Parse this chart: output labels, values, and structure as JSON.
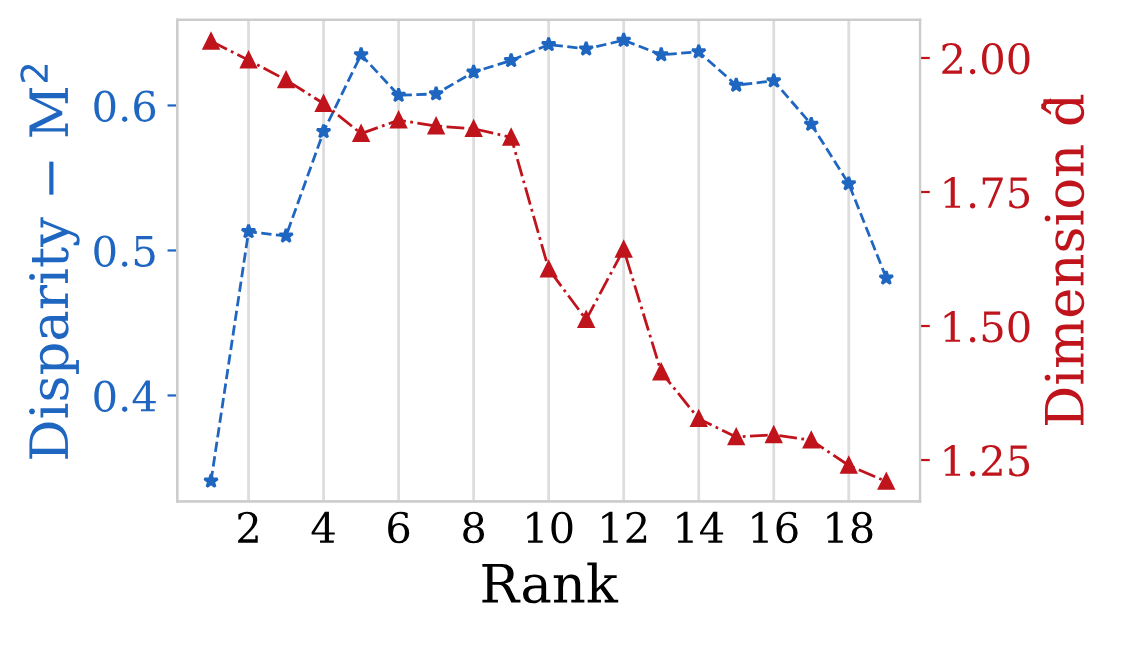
{
  "chart_data": {
    "type": "line",
    "xlabel": "Rank",
    "ylabel": "Disparity − M$^{2}$",
    "y2label": "Dimension d̂",
    "x": [
      1,
      2,
      3,
      4,
      5,
      6,
      7,
      8,
      9,
      10,
      11,
      12,
      13,
      14,
      15,
      16,
      17,
      18,
      19
    ],
    "xlim": [
      0.1,
      19.9
    ],
    "xticks": [
      2,
      4,
      6,
      8,
      10,
      12,
      14,
      16,
      18
    ],
    "ylim": [
      0.327,
      0.659
    ],
    "yticks": [
      0.4,
      0.5,
      0.6
    ],
    "y2lim": [
      1.173,
      2.071
    ],
    "y2ticks": [
      {
        "value": 1.25,
        "label": "1.25"
      },
      {
        "value": 1.5,
        "label": "1.50"
      },
      {
        "value": 1.75,
        "label": "1.75"
      },
      {
        "value": 2.0,
        "label": "2.00"
      }
    ],
    "grid": "x",
    "series": [
      {
        "color": "#1f66c1",
        "marker": "star",
        "line_style": "dashed",
        "values": [
          0.341,
          0.513,
          0.51,
          0.582,
          0.635,
          0.607,
          0.608,
          0.623,
          0.631,
          0.642,
          0.639,
          0.645,
          0.635,
          0.637,
          0.614,
          0.617,
          0.587,
          0.546,
          0.481
        ]
      },
      {
        "color": "#c0141c",
        "marker": "triangle",
        "line_style": "dashdot",
        "axis": "y2",
        "values": [
          2.031,
          1.996,
          1.959,
          1.915,
          1.859,
          1.884,
          1.873,
          1.868,
          1.852,
          1.606,
          1.512,
          1.643,
          1.414,
          1.327,
          1.293,
          1.297,
          1.287,
          1.24,
          1.21
        ]
      }
    ]
  }
}
